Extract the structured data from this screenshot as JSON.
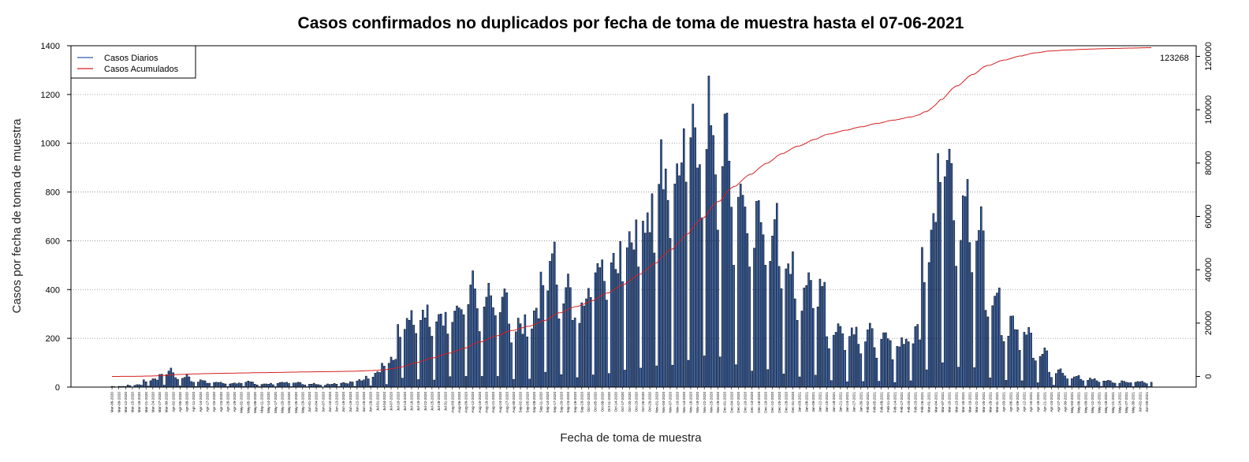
{
  "chart_data": {
    "type": "bar",
    "title": "Casos confirmados no duplicados por fecha de toma de muestra hasta el 07-06-2021",
    "xlabel": "Fecha de toma de muestra",
    "ylabel": "Casos por fecha de toma de muestra",
    "ylim": [
      0,
      1400
    ],
    "y_ticks": [
      "0",
      "200",
      "400",
      "600",
      "800",
      "1000",
      "1200",
      "1400"
    ],
    "y2lim": [
      -4000,
      124000
    ],
    "y2_ticks": [
      "0",
      "20000",
      "40000",
      "60000",
      "80000",
      "100000",
      "120000"
    ],
    "grid": "horizontal dotted",
    "legend_position": "top-left",
    "x_start_date": "2020-03-06",
    "x_end_date": "2021-06-07",
    "date_label_every_days": 3,
    "series": [
      {
        "name": "Casos Diarios",
        "type": "bar",
        "color": "#2e5caa",
        "weekly_average": [
          3,
          8,
          30,
          60,
          40,
          25,
          18,
          15,
          20,
          12,
          15,
          18,
          12,
          10,
          15,
          25,
          50,
          110,
          280,
          290,
          250,
          320,
          370,
          330,
          330,
          230,
          260,
          480,
          400,
          320,
          440,
          480,
          600,
          640,
          820,
          820,
          950,
          1000,
          920,
          720,
          620,
          620,
          460,
          380,
          400,
          220,
          220,
          200,
          180,
          170,
          210,
          620,
          950,
          720,
          600,
          340,
          240,
          220,
          140,
          60,
          40,
          30,
          25,
          20
        ]
      },
      {
        "name": "Casos Acumulados",
        "type": "line",
        "color": "#d62020",
        "final_value": 123268
      }
    ],
    "end_label": "123268"
  },
  "legend": {
    "daily_label": "Casos Diarios",
    "cumulative_label": "Casos Acumulados"
  },
  "colors": {
    "bar_fill": "#2e5caa",
    "bar_stroke": "#000000",
    "line": "#d62020",
    "grid": "#888888"
  }
}
